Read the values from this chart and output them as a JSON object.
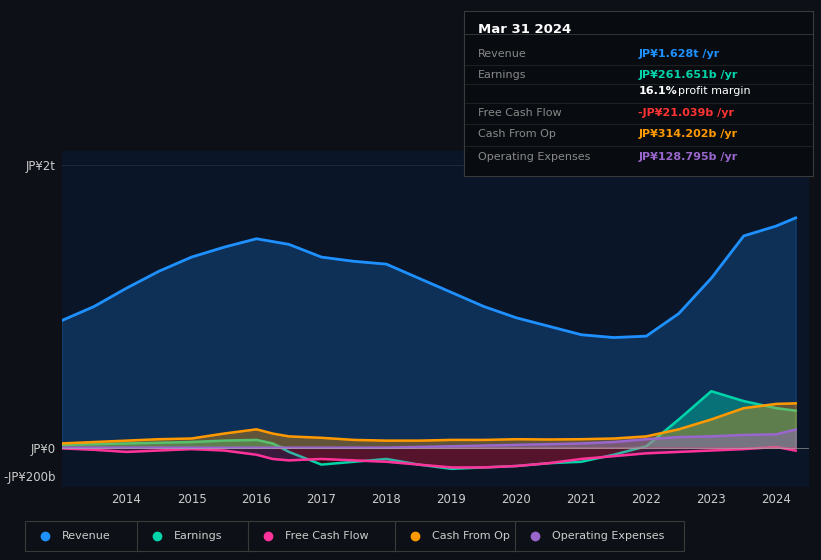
{
  "bg_color": "#0d1117",
  "plot_bg_color": "#0a1628",
  "revenue_color": "#1e90ff",
  "earnings_color": "#00d4aa",
  "fcf_color": "#ff3399",
  "cashop_color": "#ff9900",
  "opex_color": "#9966cc",
  "x_years": [
    2013.0,
    2013.5,
    2014.0,
    2014.5,
    2015.0,
    2015.5,
    2016.0,
    2016.25,
    2016.5,
    2017.0,
    2017.5,
    2018.0,
    2018.5,
    2019.0,
    2019.5,
    2020.0,
    2020.5,
    2021.0,
    2021.5,
    2022.0,
    2022.5,
    2023.0,
    2023.5,
    2024.0,
    2024.3
  ],
  "revenue": [
    900,
    1000,
    1130,
    1250,
    1350,
    1420,
    1480,
    1460,
    1440,
    1350,
    1320,
    1300,
    1200,
    1100,
    1000,
    920,
    860,
    800,
    780,
    790,
    950,
    1200,
    1500,
    1570,
    1628
  ],
  "earnings": [
    20,
    25,
    30,
    35,
    40,
    50,
    55,
    30,
    -30,
    -120,
    -100,
    -80,
    -120,
    -150,
    -140,
    -130,
    -110,
    -100,
    -50,
    10,
    200,
    400,
    330,
    280,
    262
  ],
  "free_cash_flow": [
    -5,
    -15,
    -30,
    -20,
    -10,
    -20,
    -50,
    -80,
    -90,
    -80,
    -90,
    -100,
    -120,
    -140,
    -140,
    -130,
    -110,
    -80,
    -60,
    -40,
    -30,
    -20,
    -10,
    5,
    -21
  ],
  "cash_from_op": [
    30,
    40,
    50,
    60,
    65,
    100,
    130,
    100,
    80,
    70,
    55,
    50,
    50,
    55,
    55,
    60,
    58,
    60,
    65,
    80,
    130,
    200,
    280,
    310,
    314
  ],
  "operating_expenses": [
    0,
    0,
    0,
    0,
    0,
    0,
    0,
    0,
    0,
    0,
    0,
    0,
    5,
    10,
    15,
    20,
    25,
    30,
    40,
    60,
    75,
    80,
    90,
    95,
    128
  ],
  "x_ticks": [
    2014,
    2015,
    2016,
    2017,
    2018,
    2019,
    2020,
    2021,
    2022,
    2023,
    2024
  ],
  "xlim": [
    2013.0,
    2024.5
  ],
  "ylim_min": -280,
  "ylim_max": 2100,
  "ytick_labels": [
    "JP¥2t",
    "JP¥0",
    "-JP¥200b"
  ],
  "ytick_values": [
    2000,
    0,
    -200
  ],
  "zero_line_y": 0,
  "info_box": {
    "title": "Mar 31 2024",
    "rows": [
      {
        "label": "Revenue",
        "value": "JP¥1.628t /yr",
        "color": "#1e90ff"
      },
      {
        "label": "Earnings",
        "value": "JP¥261.651b /yr",
        "color": "#00d4aa"
      },
      {
        "label": "",
        "value": "16.1% profit margin",
        "color": "#ffffff"
      },
      {
        "label": "Free Cash Flow",
        "value": "-JP¥21.039b /yr",
        "color": "#ff3333"
      },
      {
        "label": "Cash From Op",
        "value": "JP¥314.202b /yr",
        "color": "#ff9900"
      },
      {
        "label": "Operating Expenses",
        "value": "JP¥128.795b /yr",
        "color": "#9966cc"
      }
    ]
  },
  "legend": [
    {
      "label": "Revenue",
      "color": "#1e90ff"
    },
    {
      "label": "Earnings",
      "color": "#00d4aa"
    },
    {
      "label": "Free Cash Flow",
      "color": "#ff3399"
    },
    {
      "label": "Cash From Op",
      "color": "#ff9900"
    },
    {
      "label": "Operating Expenses",
      "color": "#9966cc"
    }
  ]
}
